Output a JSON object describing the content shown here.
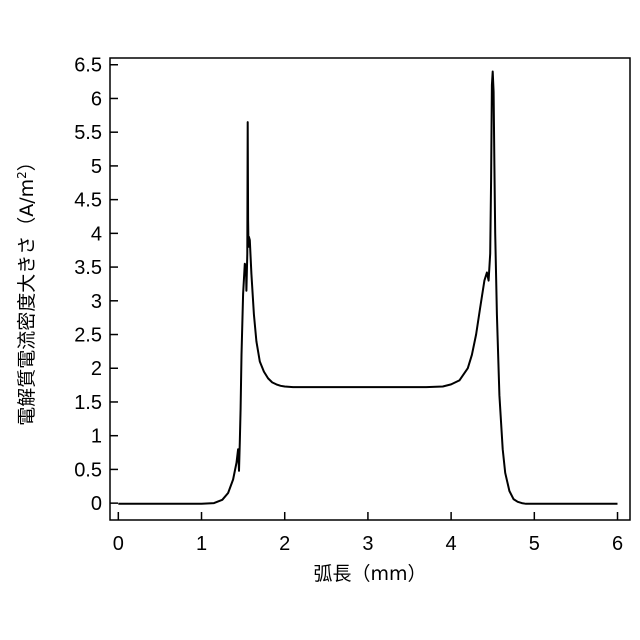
{
  "chart_data": {
    "type": "line",
    "title": "",
    "xlabel": "弧長（mm）",
    "ylabel_main": "電解質電流密度大きさ（A/m",
    "ylabel_sup": "2",
    "ylabel_close": "）",
    "xlim": [
      -0.1,
      6.15
    ],
    "ylim": [
      -0.25,
      6.6
    ],
    "grid": false,
    "legend": "none",
    "line_color": "#000000",
    "x_ticks": [
      {
        "value": 0,
        "label": "0"
      },
      {
        "value": 1,
        "label": "1"
      },
      {
        "value": 2,
        "label": "2"
      },
      {
        "value": 3,
        "label": "3"
      },
      {
        "value": 4,
        "label": "4"
      },
      {
        "value": 5,
        "label": "5"
      },
      {
        "value": 6,
        "label": "6"
      }
    ],
    "y_ticks": [
      {
        "value": 0,
        "label": "0"
      },
      {
        "value": 0.5,
        "label": "0.5"
      },
      {
        "value": 1,
        "label": "1"
      },
      {
        "value": 1.5,
        "label": "1.5"
      },
      {
        "value": 2,
        "label": "2"
      },
      {
        "value": 2.5,
        "label": "2.5"
      },
      {
        "value": 3,
        "label": "3"
      },
      {
        "value": 3.5,
        "label": "3.5"
      },
      {
        "value": 4,
        "label": "4"
      },
      {
        "value": 4.5,
        "label": "4.5"
      },
      {
        "value": 5,
        "label": "5"
      },
      {
        "value": 5.5,
        "label": "5.5"
      },
      {
        "value": 6,
        "label": "6"
      },
      {
        "value": 6.5,
        "label": "6.5"
      }
    ],
    "series": [
      {
        "x": [
          0,
          1.0,
          1.15,
          1.25,
          1.32,
          1.38,
          1.42,
          1.44,
          1.45,
          1.46,
          1.47,
          1.48,
          1.5,
          1.52,
          1.535,
          1.54,
          1.55,
          1.555,
          1.56,
          1.565,
          1.57,
          1.58,
          1.6,
          1.63,
          1.66,
          1.7,
          1.75,
          1.8,
          1.85,
          1.9,
          1.95,
          2.0,
          2.1,
          2.3,
          3.0,
          3.7,
          3.9,
          4.0,
          4.1,
          4.2,
          4.25,
          4.3,
          4.35,
          4.4,
          4.43,
          4.45,
          4.47,
          4.48,
          4.49,
          4.5,
          4.51,
          4.52,
          4.53,
          4.55,
          4.58,
          4.62,
          4.65,
          4.7,
          4.75,
          4.8,
          4.85,
          4.9,
          5.0,
          5.2,
          6.0
        ],
        "y": [
          -0.01,
          -0.01,
          0.0,
          0.05,
          0.15,
          0.35,
          0.6,
          0.8,
          0.48,
          0.9,
          1.4,
          2.2,
          3.1,
          3.55,
          3.5,
          3.15,
          3.7,
          5.65,
          4.2,
          3.8,
          3.95,
          3.9,
          3.4,
          2.8,
          2.4,
          2.1,
          1.95,
          1.85,
          1.79,
          1.76,
          1.74,
          1.73,
          1.72,
          1.72,
          1.72,
          1.72,
          1.73,
          1.76,
          1.82,
          2.0,
          2.2,
          2.5,
          2.9,
          3.3,
          3.42,
          3.3,
          3.7,
          4.8,
          6.2,
          6.4,
          6.1,
          5.0,
          4.0,
          2.8,
          1.6,
          0.8,
          0.45,
          0.18,
          0.06,
          0.02,
          0.0,
          -0.01,
          -0.01,
          -0.01,
          -0.01
        ]
      }
    ]
  }
}
